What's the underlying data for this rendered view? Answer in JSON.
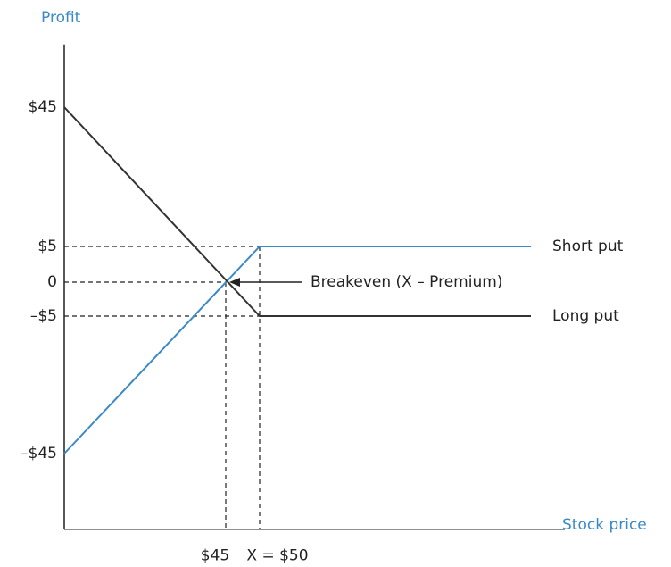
{
  "chart_data": {
    "type": "line",
    "x_label": "Stock price",
    "y_label": "Profit",
    "annotation": "Breakeven (X – Premium)",
    "x": [
      0,
      50,
      90
    ],
    "series": [
      {
        "name": "Short put",
        "color": "#3b8ac4",
        "values": [
          -45,
          5,
          5
        ]
      },
      {
        "name": "Long put",
        "color": "#333333",
        "values": [
          45,
          -5,
          -5
        ]
      }
    ],
    "xlim": [
      0,
      95
    ],
    "ylim": [
      -67,
      63
    ],
    "xticks": [
      {
        "value": 45,
        "label": "$45"
      },
      {
        "value": 50,
        "label": "X = $50"
      }
    ],
    "yticks": [
      {
        "value": -45,
        "label": "–$45"
      },
      {
        "value": -5,
        "label": "–$5"
      },
      {
        "value": 0,
        "label": "0"
      },
      {
        "value": 5,
        "label": "$5"
      },
      {
        "value": 45,
        "label": "$45"
      }
    ],
    "axis_color": "#222222"
  }
}
